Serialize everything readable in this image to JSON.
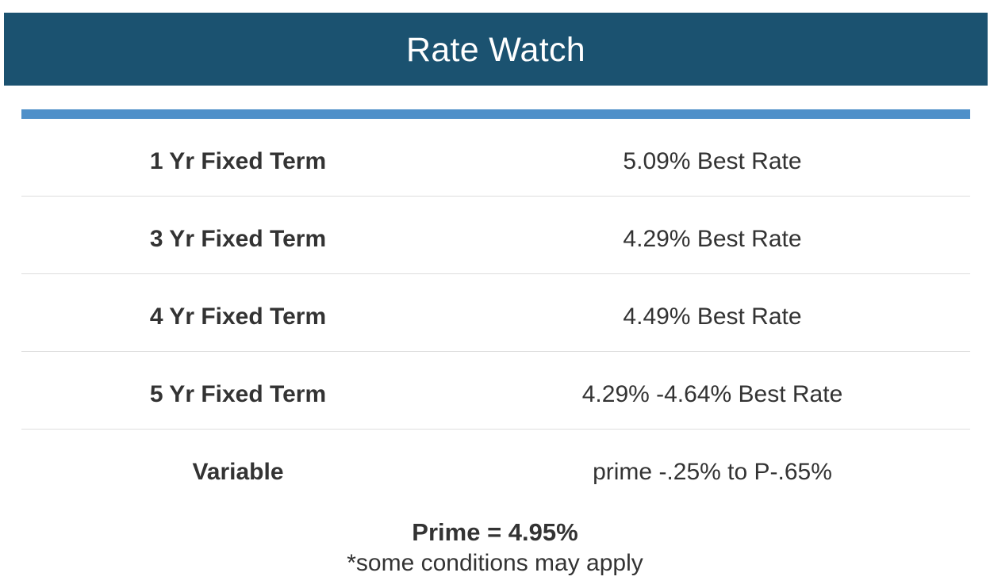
{
  "header": {
    "title": "Rate Watch"
  },
  "colors": {
    "header_bg": "#1b5270",
    "accent_bar": "#4f90c9",
    "divider": "#dedede",
    "text": "#333333"
  },
  "rates": [
    {
      "term": "1 Yr Fixed Term",
      "rate": "5.09% Best Rate"
    },
    {
      "term": "3 Yr Fixed Term",
      "rate": "4.29% Best Rate"
    },
    {
      "term": "4 Yr Fixed Term",
      "rate": "4.49% Best Rate"
    },
    {
      "term": "5 Yr Fixed Term",
      "rate": "4.29% -4.64% Best Rate"
    },
    {
      "term": "Variable",
      "rate": "prime -.25% to P-.65%"
    }
  ],
  "footer": {
    "prime": "Prime = 4.95%",
    "conditions": "*some conditions may apply"
  }
}
